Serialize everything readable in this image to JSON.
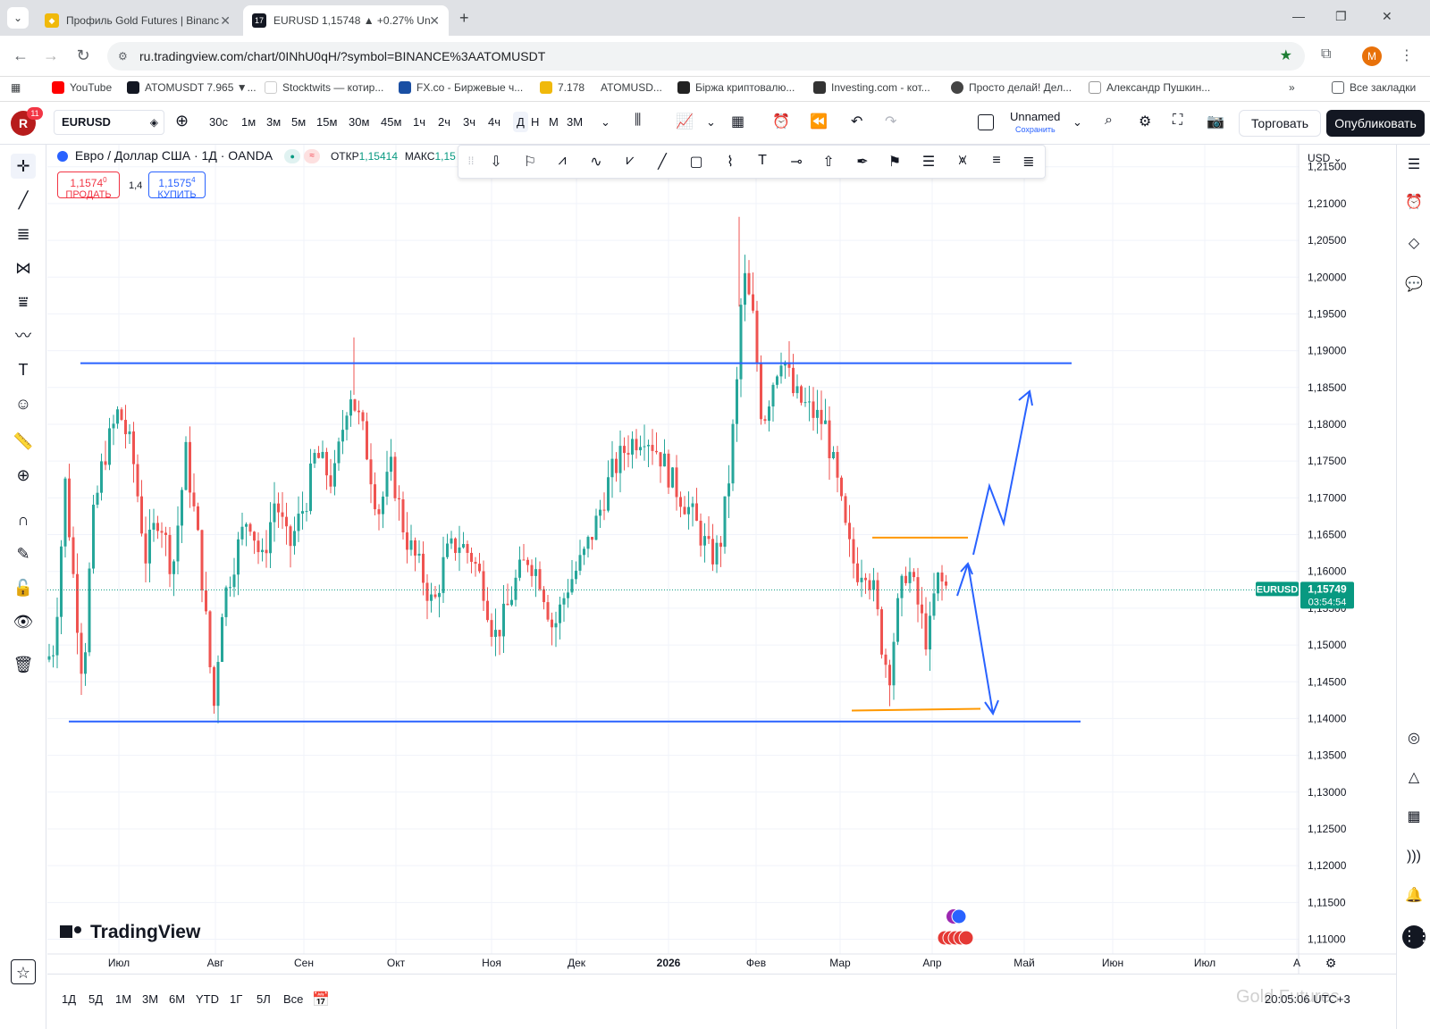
{
  "browser": {
    "tabs": [
      {
        "title": "Профиль Gold Futures | Binanc",
        "active": false
      },
      {
        "title": "EURUSD 1,15748 ▲ +0.27% Un",
        "active": true
      }
    ],
    "url": "ru.tradingview.com/chart/0INhU0qH/?symbol=BINANCE%3AATOMUSDT",
    "bookmarks": [
      "YouTube",
      "ATOMUSDT 7.965 ▼...",
      "Stocktwits — котир...",
      "FX.co - Биржевые ч...",
      "7.178",
      "ATOMUSD...",
      "Біржа криптовалю...",
      "Investing.com - кот...",
      "Просто делай! Дел...",
      "Александр Пушкин...",
      "Все закладки"
    ],
    "profile_letter": "M"
  },
  "toolbar": {
    "avatar_letter": "R",
    "notif_count": "11",
    "symbol": "EURUSD",
    "intervals": [
      "30с",
      "1м",
      "3м",
      "5м",
      "15м",
      "30м",
      "45м",
      "1ч",
      "2ч",
      "3ч",
      "4ч",
      "Д",
      "Н",
      "М",
      "3М"
    ],
    "active_interval": "Д",
    "layout_name": "Unnamed",
    "save_label": "Сохранить",
    "trade_label": "Торговать",
    "publish_label": "Опубликовать"
  },
  "legend": {
    "title": "Евро / Доллар США · 1Д · OANDA",
    "open_label": "ОТКР",
    "open_value": "1,15414",
    "high_label": "МАКС",
    "high_value": "1,15",
    "sell_price": "1,1574",
    "sell_sup": "0",
    "sell_label": "ПРОДАТЬ",
    "spread": "1,4",
    "buy_price": "1,1575",
    "buy_sup": "4",
    "buy_label": "КУПИТЬ"
  },
  "price_axis": {
    "currency": "USD",
    "ticks": [
      "1,21500",
      "1,21000",
      "1,20500",
      "1,20000",
      "1,19500",
      "1,19000",
      "1,18500",
      "1,18000",
      "1,17500",
      "1,17000",
      "1,16500",
      "1,16000",
      "1,15500",
      "1,15000",
      "1,14500",
      "1,14000",
      "1,13500",
      "1,13000",
      "1,12500",
      "1,12000",
      "1,11500",
      "1,11000"
    ],
    "tick_values": [
      1.215,
      1.21,
      1.205,
      1.2,
      1.195,
      1.19,
      1.185,
      1.18,
      1.175,
      1.17,
      1.165,
      1.16,
      1.155,
      1.15,
      1.145,
      1.14,
      1.135,
      1.13,
      1.125,
      1.12,
      1.115,
      1.11
    ],
    "current_symbol": "EURUSD",
    "current_price": "1,15749",
    "current_value": 1.15749,
    "countdown": "03:54:54"
  },
  "time_axis": {
    "labels": [
      "Июл",
      "Авг",
      "Сен",
      "Окт",
      "Ноя",
      "Дек",
      "2026",
      "Фев",
      "Мар",
      "Апр",
      "Май",
      "Июн",
      "Июл",
      "А"
    ]
  },
  "chart_data": {
    "type": "candlestick",
    "symbol": "EURUSD",
    "interval": "1D",
    "ylim": [
      1.108,
      1.218
    ],
    "levels": [
      {
        "kind": "horizontal",
        "color": "#2962ff",
        "value": 1.1883
      },
      {
        "kind": "horizontal",
        "color": "#2962ff",
        "value": 1.1396
      },
      {
        "kind": "horizontal",
        "color": "#ff9800",
        "value": 1.1646
      },
      {
        "kind": "horizontal",
        "color": "#ff9800",
        "value": 1.1412
      }
    ],
    "up_color": "#26a69a",
    "down_color": "#ef5350"
  },
  "timeframes": [
    "1Д",
    "5Д",
    "1М",
    "3М",
    "6М",
    "YTD",
    "1Г",
    "5Л",
    "Все"
  ],
  "clock": "20:05:06 UTC+3",
  "watermark": "Gold Futures",
  "logo_text": "TradingView"
}
